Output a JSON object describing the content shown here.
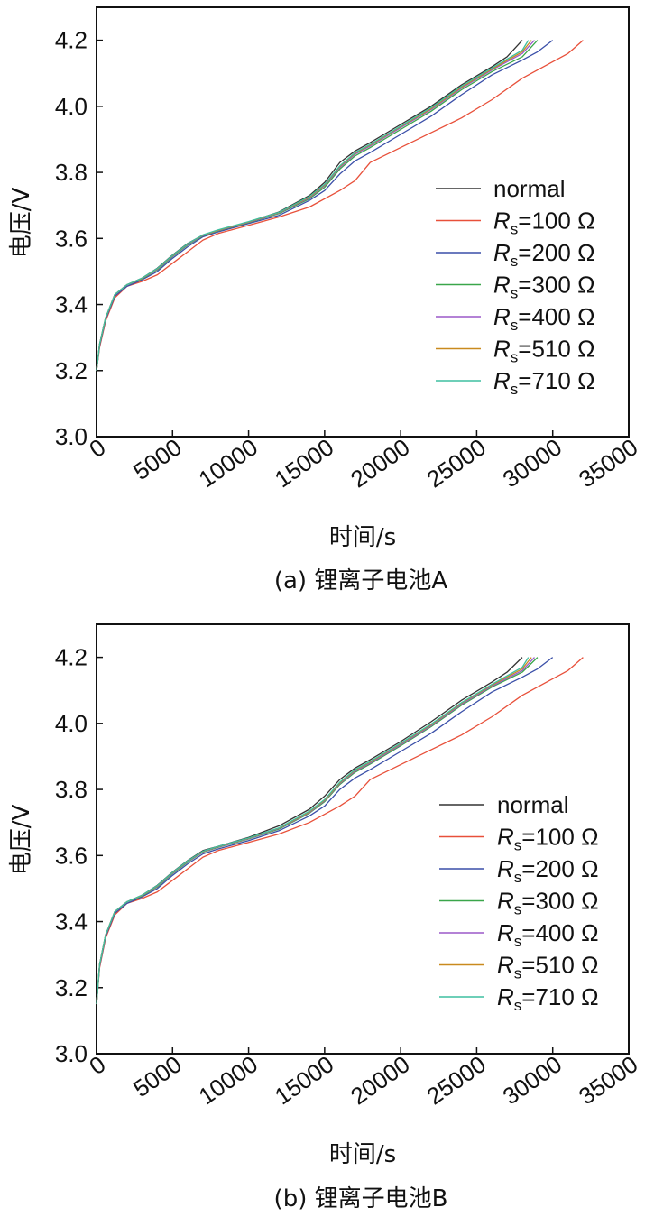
{
  "chart_data": [
    {
      "type": "line",
      "caption": "(a) 锂离子电池A",
      "xlabel": "时间/s",
      "ylabel": "电压/V",
      "xlim": [
        0,
        35000
      ],
      "ylim": [
        3.0,
        4.3
      ],
      "xticks": [
        "0",
        "5000",
        "10000",
        "15000",
        "20000",
        "25000",
        "30000",
        "35000"
      ],
      "yticks": [
        "3.0",
        "3.2",
        "3.4",
        "3.6",
        "3.8",
        "4.0",
        "4.2"
      ],
      "legend_position": "right",
      "series": [
        {
          "name": "normal",
          "color": "#333333",
          "x": [
            0,
            200,
            600,
            1200,
            2000,
            3000,
            4000,
            5000,
            6000,
            7000,
            8000,
            10000,
            12000,
            14000,
            15000,
            16000,
            17000,
            18000,
            20000,
            22000,
            24000,
            26000,
            27000,
            28000
          ],
          "y": [
            3.2,
            3.28,
            3.36,
            3.43,
            3.46,
            3.48,
            3.51,
            3.55,
            3.585,
            3.61,
            3.625,
            3.65,
            3.68,
            3.73,
            3.77,
            3.83,
            3.865,
            3.89,
            3.945,
            4.0,
            4.065,
            4.12,
            4.15,
            4.2
          ]
        },
        {
          "name": "Rs=100 Ω",
          "color": "#e8503a",
          "x": [
            0,
            200,
            600,
            1200,
            2000,
            3000,
            4000,
            5000,
            6000,
            7000,
            8000,
            10000,
            12000,
            14000,
            16000,
            17000,
            18000,
            20000,
            22000,
            24000,
            26000,
            28000,
            30000,
            31000,
            32000
          ],
          "y": [
            3.2,
            3.27,
            3.35,
            3.42,
            3.455,
            3.47,
            3.49,
            3.525,
            3.56,
            3.595,
            3.615,
            3.64,
            3.665,
            3.695,
            3.745,
            3.775,
            3.83,
            3.875,
            3.92,
            3.965,
            4.02,
            4.085,
            4.135,
            4.16,
            4.2
          ]
        },
        {
          "name": "Rs=200 Ω",
          "color": "#3a4fa8",
          "x": [
            0,
            200,
            600,
            1200,
            2000,
            3000,
            4000,
            5000,
            6000,
            7000,
            8000,
            10000,
            12000,
            14000,
            15000,
            16000,
            17000,
            18000,
            20000,
            22000,
            24000,
            26000,
            28000,
            29000,
            30000
          ],
          "y": [
            3.2,
            3.275,
            3.355,
            3.425,
            3.455,
            3.475,
            3.5,
            3.54,
            3.575,
            3.605,
            3.62,
            3.645,
            3.67,
            3.715,
            3.745,
            3.795,
            3.835,
            3.86,
            3.915,
            3.97,
            4.035,
            4.095,
            4.14,
            4.165,
            4.2
          ]
        },
        {
          "name": "Rs=300 Ω",
          "color": "#3aa64a",
          "x": [
            0,
            200,
            600,
            1200,
            2000,
            3000,
            4000,
            5000,
            6000,
            7000,
            8000,
            10000,
            12000,
            14000,
            15000,
            16000,
            17000,
            18000,
            20000,
            22000,
            24000,
            26000,
            28000,
            29000
          ],
          "y": [
            3.2,
            3.28,
            3.36,
            3.43,
            3.46,
            3.478,
            3.505,
            3.545,
            3.58,
            3.608,
            3.623,
            3.648,
            3.675,
            3.72,
            3.755,
            3.81,
            3.85,
            3.875,
            3.93,
            3.985,
            4.05,
            4.105,
            4.15,
            4.2
          ]
        },
        {
          "name": "Rs=400 Ω",
          "color": "#9b59c9",
          "x": [
            0,
            200,
            600,
            1200,
            2000,
            3000,
            4000,
            5000,
            6000,
            7000,
            8000,
            10000,
            12000,
            14000,
            15000,
            16000,
            17000,
            18000,
            20000,
            22000,
            24000,
            26000,
            28000,
            28800
          ],
          "y": [
            3.2,
            3.28,
            3.36,
            3.43,
            3.46,
            3.479,
            3.507,
            3.547,
            3.582,
            3.609,
            3.624,
            3.649,
            3.677,
            3.723,
            3.76,
            3.815,
            3.855,
            3.88,
            3.935,
            3.99,
            4.055,
            4.11,
            4.16,
            4.2
          ]
        },
        {
          "name": "Rs=510 Ω",
          "color": "#c98a1e",
          "x": [
            0,
            200,
            600,
            1200,
            2000,
            3000,
            4000,
            5000,
            6000,
            7000,
            8000,
            10000,
            12000,
            14000,
            15000,
            16000,
            17000,
            18000,
            20000,
            22000,
            24000,
            26000,
            28000,
            28600
          ],
          "y": [
            3.2,
            3.28,
            3.36,
            3.43,
            3.46,
            3.479,
            3.508,
            3.548,
            3.583,
            3.61,
            3.625,
            3.65,
            3.678,
            3.725,
            3.762,
            3.818,
            3.858,
            3.883,
            3.938,
            3.993,
            4.058,
            4.113,
            4.165,
            4.2
          ]
        },
        {
          "name": "Rs=710 Ω",
          "color": "#3fbfa0",
          "x": [
            0,
            200,
            600,
            1200,
            2000,
            3000,
            4000,
            5000,
            6000,
            7000,
            8000,
            10000,
            12000,
            14000,
            15000,
            16000,
            17000,
            18000,
            20000,
            22000,
            24000,
            26000,
            28000,
            28400
          ],
          "y": [
            3.2,
            3.28,
            3.36,
            3.43,
            3.46,
            3.48,
            3.509,
            3.549,
            3.584,
            3.611,
            3.626,
            3.651,
            3.679,
            3.727,
            3.764,
            3.82,
            3.86,
            3.885,
            3.94,
            3.996,
            4.061,
            4.116,
            4.17,
            4.2
          ]
        }
      ]
    },
    {
      "type": "line",
      "caption": "(b) 锂离子电池B",
      "xlabel": "时间/s",
      "ylabel": "电压/V",
      "xlim": [
        0,
        35000
      ],
      "ylim": [
        3.0,
        4.3
      ],
      "xticks": [
        "0",
        "5000",
        "10000",
        "15000",
        "20000",
        "25000",
        "30000",
        "35000"
      ],
      "yticks": [
        "3.0",
        "3.2",
        "3.4",
        "3.6",
        "3.8",
        "4.0",
        "4.2"
      ],
      "legend_position": "right",
      "series": [
        {
          "name": "normal",
          "color": "#333333",
          "x": [
            0,
            200,
            600,
            1200,
            2000,
            3000,
            4000,
            5000,
            6000,
            7000,
            8000,
            10000,
            12000,
            14000,
            15000,
            16000,
            17000,
            18000,
            20000,
            22000,
            24000,
            26000,
            27000,
            28000
          ],
          "y": [
            3.15,
            3.27,
            3.36,
            3.43,
            3.46,
            3.48,
            3.51,
            3.55,
            3.585,
            3.615,
            3.628,
            3.655,
            3.69,
            3.74,
            3.78,
            3.83,
            3.865,
            3.89,
            3.945,
            4.005,
            4.07,
            4.125,
            4.155,
            4.2
          ]
        },
        {
          "name": "Rs=100 Ω",
          "color": "#e8503a",
          "x": [
            0,
            200,
            600,
            1200,
            2000,
            3000,
            4000,
            5000,
            6000,
            7000,
            8000,
            10000,
            12000,
            14000,
            16000,
            17000,
            18000,
            20000,
            22000,
            24000,
            26000,
            28000,
            30000,
            31000,
            32000
          ],
          "y": [
            3.15,
            3.26,
            3.35,
            3.42,
            3.455,
            3.47,
            3.49,
            3.525,
            3.56,
            3.595,
            3.615,
            3.64,
            3.665,
            3.7,
            3.75,
            3.78,
            3.83,
            3.875,
            3.92,
            3.965,
            4.02,
            4.085,
            4.135,
            4.16,
            4.2
          ]
        },
        {
          "name": "Rs=200 Ω",
          "color": "#3a4fa8",
          "x": [
            0,
            200,
            600,
            1200,
            2000,
            3000,
            4000,
            5000,
            6000,
            7000,
            8000,
            10000,
            12000,
            14000,
            15000,
            16000,
            17000,
            18000,
            20000,
            22000,
            24000,
            26000,
            28000,
            29000,
            30000
          ],
          "y": [
            3.15,
            3.265,
            3.355,
            3.425,
            3.455,
            3.475,
            3.5,
            3.54,
            3.575,
            3.605,
            3.62,
            3.645,
            3.675,
            3.72,
            3.75,
            3.8,
            3.835,
            3.86,
            3.915,
            3.97,
            4.035,
            4.095,
            4.14,
            4.165,
            4.2
          ]
        },
        {
          "name": "Rs=300 Ω",
          "color": "#3aa64a",
          "x": [
            0,
            200,
            600,
            1200,
            2000,
            3000,
            4000,
            5000,
            6000,
            7000,
            8000,
            10000,
            12000,
            14000,
            15000,
            16000,
            17000,
            18000,
            20000,
            22000,
            24000,
            26000,
            28000,
            29000
          ],
          "y": [
            3.15,
            3.27,
            3.36,
            3.43,
            3.46,
            3.478,
            3.505,
            3.545,
            3.58,
            3.61,
            3.625,
            3.65,
            3.68,
            3.728,
            3.763,
            3.815,
            3.852,
            3.877,
            3.932,
            3.99,
            4.055,
            4.11,
            4.155,
            4.2
          ]
        },
        {
          "name": "Rs=400 Ω",
          "color": "#9b59c9",
          "x": [
            0,
            200,
            600,
            1200,
            2000,
            3000,
            4000,
            5000,
            6000,
            7000,
            8000,
            10000,
            12000,
            14000,
            15000,
            16000,
            17000,
            18000,
            20000,
            22000,
            24000,
            26000,
            28000,
            28800
          ],
          "y": [
            3.15,
            3.27,
            3.36,
            3.43,
            3.46,
            3.479,
            3.507,
            3.547,
            3.582,
            3.611,
            3.626,
            3.651,
            3.682,
            3.73,
            3.766,
            3.818,
            3.855,
            3.88,
            3.935,
            3.993,
            4.058,
            4.113,
            4.16,
            4.2
          ]
        },
        {
          "name": "Rs=510 Ω",
          "color": "#c98a1e",
          "x": [
            0,
            200,
            600,
            1200,
            2000,
            3000,
            4000,
            5000,
            6000,
            7000,
            8000,
            10000,
            12000,
            14000,
            15000,
            16000,
            17000,
            18000,
            20000,
            22000,
            24000,
            26000,
            28000,
            28600
          ],
          "y": [
            3.15,
            3.27,
            3.36,
            3.43,
            3.46,
            3.479,
            3.508,
            3.548,
            3.583,
            3.612,
            3.627,
            3.652,
            3.683,
            3.732,
            3.768,
            3.82,
            3.858,
            3.883,
            3.938,
            3.996,
            4.061,
            4.116,
            4.165,
            4.2
          ]
        },
        {
          "name": "Rs=710 Ω",
          "color": "#3fbfa0",
          "x": [
            0,
            200,
            600,
            1200,
            2000,
            3000,
            4000,
            5000,
            6000,
            7000,
            8000,
            10000,
            12000,
            14000,
            15000,
            16000,
            17000,
            18000,
            20000,
            22000,
            24000,
            26000,
            28000,
            28400
          ],
          "y": [
            3.15,
            3.27,
            3.36,
            3.43,
            3.46,
            3.48,
            3.509,
            3.549,
            3.584,
            3.613,
            3.628,
            3.653,
            3.684,
            3.734,
            3.77,
            3.822,
            3.86,
            3.885,
            3.94,
            3.998,
            4.063,
            4.118,
            4.17,
            4.2
          ]
        }
      ]
    }
  ]
}
